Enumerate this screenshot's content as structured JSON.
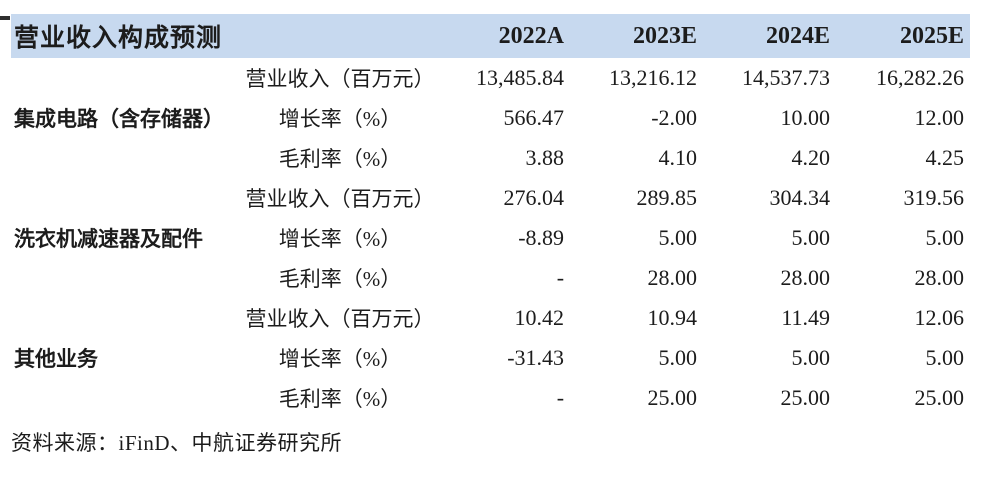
{
  "colors": {
    "header_bg": "#c7d9ef",
    "text": "#1c1c1c"
  },
  "table": {
    "title": "营业收入构成预测",
    "year_columns": [
      "2022A",
      "2023E",
      "2024E",
      "2025E"
    ],
    "groups": [
      {
        "name": "集成电路（含存储器）",
        "rows": [
          {
            "metric": "营业收入（百万元）",
            "values": [
              "13,485.84",
              "13,216.12",
              "14,537.73",
              "16,282.26"
            ]
          },
          {
            "metric": "增长率（%）",
            "values": [
              "566.47",
              "-2.00",
              "10.00",
              "12.00"
            ]
          },
          {
            "metric": "毛利率（%）",
            "values": [
              "3.88",
              "4.10",
              "4.20",
              "4.25"
            ]
          }
        ]
      },
      {
        "name": "洗衣机减速器及配件",
        "rows": [
          {
            "metric": "营业收入（百万元）",
            "values": [
              "276.04",
              "289.85",
              "304.34",
              "319.56"
            ]
          },
          {
            "metric": "增长率（%）",
            "values": [
              "-8.89",
              "5.00",
              "5.00",
              "5.00"
            ]
          },
          {
            "metric": "毛利率（%）",
            "values": [
              "-",
              "28.00",
              "28.00",
              "28.00"
            ]
          }
        ]
      },
      {
        "name": "其他业务",
        "rows": [
          {
            "metric": "营业收入（百万元）",
            "values": [
              "10.42",
              "10.94",
              "11.49",
              "12.06"
            ]
          },
          {
            "metric": "增长率（%）",
            "values": [
              "-31.43",
              "5.00",
              "5.00",
              "5.00"
            ]
          },
          {
            "metric": "毛利率（%）",
            "values": [
              "-",
              "25.00",
              "25.00",
              "25.00"
            ]
          }
        ]
      }
    ]
  },
  "chart_data": {
    "type": "table",
    "title": "营业收入构成预测",
    "columns": [
      "",
      "",
      "2022A",
      "2023E",
      "2024E",
      "2025E"
    ],
    "rows": [
      [
        "集成电路（含存储器）",
        "营业收入（百万元）",
        "13,485.84",
        "13,216.12",
        "14,537.73",
        "16,282.26"
      ],
      [
        "集成电路（含存储器）",
        "增长率（%）",
        "566.47",
        "-2.00",
        "10.00",
        "12.00"
      ],
      [
        "集成电路（含存储器）",
        "毛利率（%）",
        "3.88",
        "4.10",
        "4.20",
        "4.25"
      ],
      [
        "洗衣机减速器及配件",
        "营业收入（百万元）",
        "276.04",
        "289.85",
        "304.34",
        "319.56"
      ],
      [
        "洗衣机减速器及配件",
        "增长率（%）",
        "-8.89",
        "5.00",
        "5.00",
        "5.00"
      ],
      [
        "洗衣机减速器及配件",
        "毛利率（%）",
        "-",
        "28.00",
        "28.00",
        "28.00"
      ],
      [
        "其他业务",
        "营业收入（百万元）",
        "10.42",
        "10.94",
        "11.49",
        "12.06"
      ],
      [
        "其他业务",
        "增长率（%）",
        "-31.43",
        "5.00",
        "5.00",
        "5.00"
      ],
      [
        "其他业务",
        "毛利率（%）",
        "-",
        "25.00",
        "25.00",
        "25.00"
      ]
    ]
  },
  "footer": {
    "source_note": "资料来源：iFinD、中航证券研究所"
  }
}
